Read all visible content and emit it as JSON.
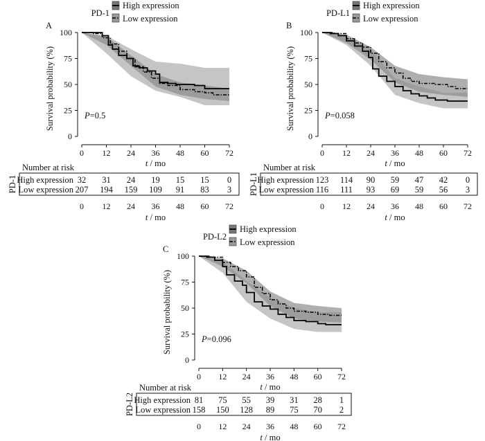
{
  "chart_data": [
    {
      "type": "line",
      "panel_letter": "A",
      "legend_title": "PD-1",
      "ylabel": "Survival probability (%)",
      "xlabel_var": "t",
      "xlabel_unit": " / mo",
      "xticks": [
        0,
        12,
        24,
        36,
        48,
        60,
        72
      ],
      "yticks": [
        0,
        25,
        50,
        75,
        100
      ],
      "xlim": [
        0,
        72
      ],
      "ylim": [
        0,
        100
      ],
      "p_label": "P",
      "p_value": "=0.5",
      "risk_title": "Number at risk",
      "risk_side_label": "PD-1",
      "series": [
        {
          "name": "High expression",
          "step": [
            [
              0,
              100
            ],
            [
              3,
              100
            ],
            [
              10,
              97
            ],
            [
              13,
              88
            ],
            [
              15,
              84
            ],
            [
              18,
              78
            ],
            [
              22,
              75
            ],
            [
              25,
              68
            ],
            [
              28,
              66
            ],
            [
              32,
              63
            ],
            [
              36,
              60
            ],
            [
              38,
              52
            ],
            [
              42,
              51
            ],
            [
              46,
              50
            ],
            [
              52,
              50
            ],
            [
              55,
              49
            ],
            [
              60,
              46
            ],
            [
              72,
              46
            ]
          ],
          "band": [
            [
              0,
              100,
              100
            ],
            [
              12,
              97,
              80
            ],
            [
              24,
              84,
              58
            ],
            [
              36,
              72,
              44
            ],
            [
              48,
              70,
              38
            ],
            [
              60,
              66,
              30
            ],
            [
              72,
              66,
              30
            ]
          ],
          "risk": [
            32,
            31,
            24,
            19,
            15,
            15,
            0
          ]
        },
        {
          "name": "Low expression",
          "step": [
            [
              0,
              100
            ],
            [
              5,
              99
            ],
            [
              10,
              95
            ],
            [
              14,
              89
            ],
            [
              18,
              82
            ],
            [
              22,
              75
            ],
            [
              26,
              67
            ],
            [
              30,
              62
            ],
            [
              34,
              56
            ],
            [
              38,
              51
            ],
            [
              42,
              49
            ],
            [
              48,
              45
            ],
            [
              55,
              43
            ],
            [
              60,
              42
            ],
            [
              64,
              40
            ],
            [
              72,
              40
            ]
          ],
          "band": [
            [
              0,
              100,
              100
            ],
            [
              12,
              96,
              88
            ],
            [
              24,
              78,
              68
            ],
            [
              36,
              60,
              48
            ],
            [
              48,
              52,
              40
            ],
            [
              60,
              49,
              36
            ],
            [
              72,
              46,
              34
            ]
          ],
          "risk": [
            207,
            194,
            159,
            109,
            91,
            83,
            3
          ]
        }
      ]
    },
    {
      "type": "line",
      "panel_letter": "B",
      "legend_title": "PD-L1",
      "ylabel": "Survival probability (%)",
      "xlabel_var": "t",
      "xlabel_unit": " / mo",
      "xticks": [
        0,
        12,
        24,
        36,
        48,
        60,
        72
      ],
      "yticks": [
        0,
        25,
        50,
        75,
        100
      ],
      "xlim": [
        0,
        72
      ],
      "ylim": [
        0,
        100
      ],
      "p_label": "P",
      "p_value": "=0.058",
      "risk_title": "Number at risk",
      "risk_side_label": "PD-L1",
      "series": [
        {
          "name": "High expression",
          "step": [
            [
              0,
              100
            ],
            [
              4,
              99
            ],
            [
              8,
              97
            ],
            [
              12,
              92
            ],
            [
              16,
              87
            ],
            [
              20,
              82
            ],
            [
              23,
              76
            ],
            [
              25,
              65
            ],
            [
              28,
              58
            ],
            [
              32,
              53
            ],
            [
              36,
              48
            ],
            [
              40,
              44
            ],
            [
              44,
              41
            ],
            [
              48,
              39
            ],
            [
              52,
              37
            ],
            [
              56,
              35
            ],
            [
              62,
              34
            ],
            [
              72,
              34
            ]
          ],
          "band": [
            [
              0,
              100,
              100
            ],
            [
              12,
              96,
              88
            ],
            [
              24,
              84,
              68
            ],
            [
              36,
              56,
              40
            ],
            [
              48,
              48,
              32
            ],
            [
              60,
              42,
              27
            ],
            [
              72,
              42,
              27
            ]
          ],
          "risk": [
            123,
            114,
            90,
            59,
            47,
            42,
            0
          ]
        },
        {
          "name": "Low expression",
          "step": [
            [
              0,
              100
            ],
            [
              6,
              99
            ],
            [
              12,
              94
            ],
            [
              16,
              90
            ],
            [
              20,
              86
            ],
            [
              24,
              80
            ],
            [
              28,
              72
            ],
            [
              32,
              66
            ],
            [
              36,
              61
            ],
            [
              40,
              56
            ],
            [
              44,
              53
            ],
            [
              48,
              51
            ],
            [
              56,
              50
            ],
            [
              62,
              48
            ],
            [
              66,
              46
            ],
            [
              72,
              46
            ]
          ],
          "band": [
            [
              0,
              100,
              100
            ],
            [
              12,
              98,
              90
            ],
            [
              24,
              86,
              74
            ],
            [
              36,
              68,
              52
            ],
            [
              48,
              60,
              43
            ],
            [
              60,
              57,
              40
            ],
            [
              72,
              55,
              38
            ]
          ],
          "risk": [
            116,
            111,
            93,
            69,
            59,
            56,
            3
          ]
        }
      ]
    },
    {
      "type": "line",
      "panel_letter": "C",
      "legend_title": "PD-L2",
      "ylabel": "Survival probability (%)",
      "xlabel_var": "t",
      "xlabel_unit": " / mo",
      "xticks": [
        0,
        12,
        24,
        36,
        48,
        60,
        72
      ],
      "yticks": [
        0,
        25,
        50,
        75,
        100
      ],
      "xlim": [
        0,
        72
      ],
      "ylim": [
        0,
        100
      ],
      "p_label": "P",
      "p_value": "=0.096",
      "risk_title": "Number at risk",
      "risk_side_label": "PD-L2",
      "series": [
        {
          "name": "High expression",
          "step": [
            [
              0,
              100
            ],
            [
              4,
              99
            ],
            [
              8,
              96
            ],
            [
              12,
              90
            ],
            [
              14,
              82
            ],
            [
              18,
              76
            ],
            [
              22,
              72
            ],
            [
              24,
              65
            ],
            [
              28,
              56
            ],
            [
              32,
              52
            ],
            [
              36,
              49
            ],
            [
              40,
              44
            ],
            [
              44,
              41
            ],
            [
              48,
              38
            ],
            [
              54,
              37
            ],
            [
              60,
              35
            ],
            [
              64,
              34
            ],
            [
              72,
              34
            ]
          ],
          "band": [
            [
              0,
              100,
              100
            ],
            [
              12,
              95,
              84
            ],
            [
              24,
              76,
              56
            ],
            [
              36,
              60,
              40
            ],
            [
              48,
              50,
              30
            ],
            [
              60,
              46,
              27
            ],
            [
              72,
              46,
              27
            ]
          ],
          "risk": [
            81,
            75,
            55,
            39,
            31,
            28,
            1
          ]
        },
        {
          "name": "Low expression",
          "step": [
            [
              0,
              100
            ],
            [
              6,
              99
            ],
            [
              12,
              94
            ],
            [
              16,
              90
            ],
            [
              20,
              86
            ],
            [
              24,
              80
            ],
            [
              28,
              70
            ],
            [
              32,
              64
            ],
            [
              36,
              58
            ],
            [
              40,
              54
            ],
            [
              44,
              50
            ],
            [
              48,
              47
            ],
            [
              54,
              46
            ],
            [
              60,
              44
            ],
            [
              66,
              43
            ],
            [
              72,
              43
            ]
          ],
          "band": [
            [
              0,
              100,
              100
            ],
            [
              12,
              98,
              90
            ],
            [
              24,
              86,
              74
            ],
            [
              36,
              66,
              52
            ],
            [
              48,
              55,
              40
            ],
            [
              60,
              52,
              37
            ],
            [
              72,
              50,
              36
            ]
          ],
          "risk": [
            158,
            150,
            128,
            89,
            75,
            70,
            2
          ]
        }
      ]
    }
  ]
}
